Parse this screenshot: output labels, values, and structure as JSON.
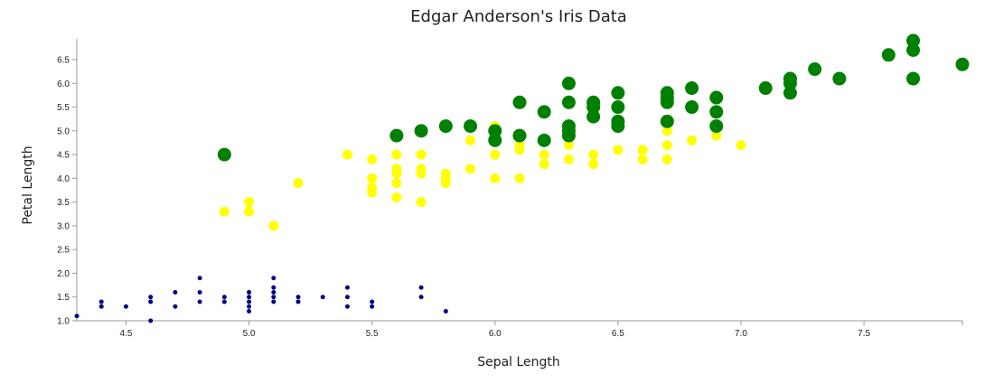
{
  "chart_data": {
    "type": "scatter",
    "title": "Edgar Anderson's Iris Data",
    "xlabel": "Sepal Length",
    "ylabel": "Petal Length",
    "xlim": [
      4.3,
      7.9
    ],
    "ylim": [
      1.0,
      6.9
    ],
    "x_ticks": [
      "4.5",
      "5.0",
      "5.5",
      "6.0",
      "6.5",
      "7.0",
      "7.5"
    ],
    "y_ticks": [
      "1.0",
      "1.5",
      "2.0",
      "2.5",
      "3.0",
      "3.5",
      "4.0",
      "4.5",
      "5.0",
      "5.5",
      "6.0",
      "6.5"
    ],
    "grid": false,
    "legend": "none",
    "size_encoding": "bubble radius scales with group",
    "series": [
      {
        "color": "#000080",
        "radius": 2.5,
        "points": [
          [
            4.3,
            1.1
          ],
          [
            4.4,
            1.3
          ],
          [
            4.4,
            1.4
          ],
          [
            4.5,
            1.3
          ],
          [
            4.6,
            1.0
          ],
          [
            4.6,
            1.4
          ],
          [
            4.6,
            1.5
          ],
          [
            4.7,
            1.3
          ],
          [
            4.7,
            1.6
          ],
          [
            4.8,
            1.4
          ],
          [
            4.8,
            1.6
          ],
          [
            4.8,
            1.9
          ],
          [
            4.9,
            1.4
          ],
          [
            4.9,
            1.5
          ],
          [
            5.0,
            1.2
          ],
          [
            5.0,
            1.3
          ],
          [
            5.0,
            1.4
          ],
          [
            5.0,
            1.5
          ],
          [
            5.0,
            1.6
          ],
          [
            5.1,
            1.4
          ],
          [
            5.1,
            1.5
          ],
          [
            5.1,
            1.6
          ],
          [
            5.1,
            1.7
          ],
          [
            5.1,
            1.9
          ],
          [
            5.2,
            1.4
          ],
          [
            5.2,
            1.5
          ],
          [
            5.3,
            1.5
          ],
          [
            5.4,
            1.3
          ],
          [
            5.4,
            1.5
          ],
          [
            5.4,
            1.7
          ],
          [
            5.5,
            1.3
          ],
          [
            5.5,
            1.4
          ],
          [
            5.7,
            1.5
          ],
          [
            5.7,
            1.7
          ],
          [
            5.8,
            1.2
          ]
        ]
      },
      {
        "color": "#ffff00",
        "radius": 5.5,
        "points": [
          [
            4.9,
            3.3
          ],
          [
            5.0,
            3.3
          ],
          [
            5.0,
            3.5
          ],
          [
            5.1,
            3.0
          ],
          [
            5.2,
            3.9
          ],
          [
            5.4,
            4.5
          ],
          [
            5.5,
            3.7
          ],
          [
            5.5,
            3.8
          ],
          [
            5.5,
            4.0
          ],
          [
            5.5,
            4.4
          ],
          [
            5.6,
            3.6
          ],
          [
            5.6,
            3.9
          ],
          [
            5.6,
            4.1
          ],
          [
            5.6,
            4.2
          ],
          [
            5.6,
            4.5
          ],
          [
            5.7,
            3.5
          ],
          [
            5.7,
            4.1
          ],
          [
            5.7,
            4.2
          ],
          [
            5.7,
            4.5
          ],
          [
            5.8,
            3.9
          ],
          [
            5.8,
            4.0
          ],
          [
            5.8,
            4.1
          ],
          [
            5.9,
            4.2
          ],
          [
            5.9,
            4.8
          ],
          [
            6.0,
            4.0
          ],
          [
            6.0,
            4.5
          ],
          [
            6.0,
            5.1
          ],
          [
            6.1,
            4.0
          ],
          [
            6.1,
            4.6
          ],
          [
            6.1,
            4.7
          ],
          [
            6.2,
            4.3
          ],
          [
            6.2,
            4.5
          ],
          [
            6.3,
            4.4
          ],
          [
            6.3,
            4.7
          ],
          [
            6.3,
            4.9
          ],
          [
            6.4,
            4.3
          ],
          [
            6.4,
            4.5
          ],
          [
            6.5,
            4.6
          ],
          [
            6.6,
            4.4
          ],
          [
            6.6,
            4.6
          ],
          [
            6.7,
            4.4
          ],
          [
            6.7,
            4.7
          ],
          [
            6.7,
            5.0
          ],
          [
            6.8,
            4.8
          ],
          [
            6.9,
            4.9
          ],
          [
            7.0,
            4.7
          ]
        ]
      },
      {
        "color": "#008000",
        "radius": 7.5,
        "points": [
          [
            4.9,
            4.5
          ],
          [
            5.6,
            4.9
          ],
          [
            5.7,
            5.0
          ],
          [
            5.8,
            5.1
          ],
          [
            5.9,
            5.1
          ],
          [
            6.0,
            4.8
          ],
          [
            6.0,
            5.0
          ],
          [
            6.1,
            4.9
          ],
          [
            6.1,
            5.6
          ],
          [
            6.2,
            4.8
          ],
          [
            6.2,
            5.4
          ],
          [
            6.3,
            4.9
          ],
          [
            6.3,
            5.0
          ],
          [
            6.3,
            5.1
          ],
          [
            6.3,
            5.6
          ],
          [
            6.3,
            6.0
          ],
          [
            6.4,
            5.3
          ],
          [
            6.4,
            5.5
          ],
          [
            6.4,
            5.6
          ],
          [
            6.5,
            5.1
          ],
          [
            6.5,
            5.2
          ],
          [
            6.5,
            5.5
          ],
          [
            6.5,
            5.8
          ],
          [
            6.7,
            5.2
          ],
          [
            6.7,
            5.6
          ],
          [
            6.7,
            5.7
          ],
          [
            6.7,
            5.8
          ],
          [
            6.8,
            5.5
          ],
          [
            6.8,
            5.9
          ],
          [
            6.9,
            5.1
          ],
          [
            6.9,
            5.4
          ],
          [
            6.9,
            5.7
          ],
          [
            7.1,
            5.9
          ],
          [
            7.2,
            5.8
          ],
          [
            7.2,
            6.0
          ],
          [
            7.2,
            6.1
          ],
          [
            7.3,
            6.3
          ],
          [
            7.4,
            6.1
          ],
          [
            7.6,
            6.6
          ],
          [
            7.7,
            6.1
          ],
          [
            7.7,
            6.7
          ],
          [
            7.7,
            6.9
          ],
          [
            7.9,
            6.4
          ]
        ]
      }
    ]
  }
}
